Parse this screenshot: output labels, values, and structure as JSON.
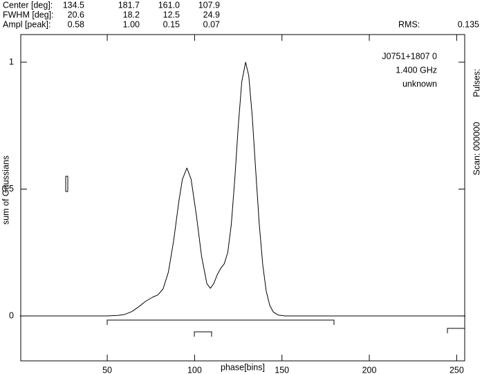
{
  "chart_data": {
    "type": "line",
    "header": {
      "rows": [
        {
          "label": "Center [deg]:",
          "values": [
            "134.5",
            "181.7",
            "161.0",
            "107.9"
          ]
        },
        {
          "label": "FWHM  [deg]:",
          "values": [
            "20.6",
            "18.2",
            "12.5",
            "24.9"
          ]
        },
        {
          "label": "Ampl  [peak]:",
          "values": [
            "0.58",
            "1.00",
            "0.15",
            "0.07"
          ]
        }
      ],
      "rms_label": "RMS:",
      "rms_value": "0.135"
    },
    "annotations": [
      "J0751+1807 0",
      "1.400 GHz",
      "unknown"
    ],
    "side_labels": [
      "Pulses:",
      "Scan: 000000"
    ],
    "x_label": "phase[bins]",
    "y_label": "sum of Gaussians",
    "x": [
      0,
      50,
      56,
      60,
      64,
      68,
      72,
      76,
      79,
      82,
      85,
      88,
      91,
      93,
      95.6,
      98,
      101,
      104,
      107,
      109,
      111,
      113,
      115,
      117,
      119,
      121,
      123,
      125,
      127,
      129.2,
      131,
      133,
      135,
      137,
      139,
      141,
      143,
      145,
      148,
      152,
      255
    ],
    "values": [
      0,
      0,
      0.002,
      0.006,
      0.017,
      0.036,
      0.058,
      0.074,
      0.083,
      0.107,
      0.173,
      0.296,
      0.452,
      0.538,
      0.583,
      0.539,
      0.398,
      0.235,
      0.128,
      0.109,
      0.128,
      0.163,
      0.188,
      0.206,
      0.251,
      0.36,
      0.539,
      0.749,
      0.923,
      1.0,
      0.947,
      0.786,
      0.571,
      0.363,
      0.202,
      0.098,
      0.042,
      0.016,
      0.003,
      0,
      0
    ],
    "color": "#000000",
    "xlim": [
      0.5,
      254.6
    ],
    "ylim": [
      -0.177,
      1.109
    ],
    "xticks": [
      50,
      100,
      150,
      200,
      250
    ],
    "yticks": [
      0,
      0.5,
      1
    ]
  }
}
